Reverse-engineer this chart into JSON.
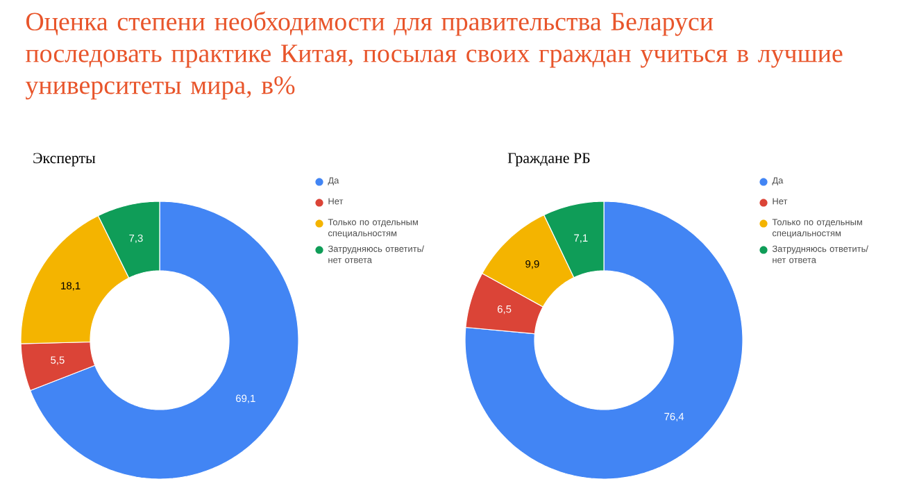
{
  "chart_data": [
    {
      "type": "donut",
      "title": "Оценка степени необходимости для правительства Беларуси последовать практике Китая, посылая своих граждан учиться в лучшие университеты мира, в%",
      "subtitle": "Эксперты",
      "categories": [
        "Да",
        "Нет",
        "Только по отдельным специальностям",
        "Затрудняюсь ответить/ нет ответа"
      ],
      "values": [
        69.1,
        5.5,
        18.1,
        7.3
      ],
      "value_labels": [
        "69,1",
        "5,5",
        "18,1",
        "7,3"
      ],
      "colors": [
        "#4285f4",
        "#db4437",
        "#f4b400",
        "#0f9d58"
      ],
      "legend": "right"
    },
    {
      "type": "donut",
      "title": "Граждане РБ",
      "categories": [
        "Да",
        "Нет",
        "Только по отдельным специальностям",
        "Затрудняюсь ответить/ нет ответа"
      ],
      "values": [
        76.4,
        6.5,
        9.9,
        7.1
      ],
      "value_labels": [
        "76,4",
        "6,5",
        "9,9",
        "7,1"
      ],
      "colors": [
        "#4285f4",
        "#db4437",
        "#f4b400",
        "#0f9d58"
      ],
      "legend": "right"
    }
  ]
}
